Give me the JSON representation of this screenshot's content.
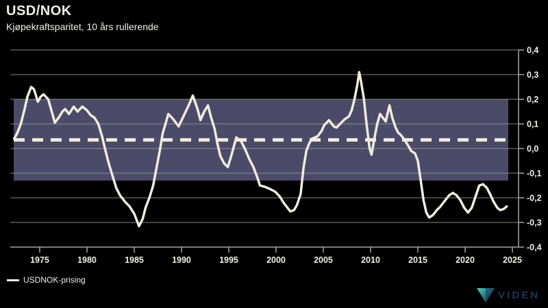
{
  "header": {
    "title": "USD/NOK",
    "subtitle": "Kjøpekraftsparitet, 10 års rullerende"
  },
  "legend": {
    "label": "USDNOK-prising"
  },
  "branding": {
    "name": "VIDEN",
    "logo": "viden-triangle-logo"
  },
  "colors": {
    "background": "#000000",
    "band": "#4b4b69",
    "line": "#f0ecdf",
    "grid": "#9a9a9a",
    "axis": "#a6a6a6",
    "text": "#f2efe6",
    "logo_text": "#1d3456",
    "logo_teal": "#52c9bd",
    "logo_mid": "#2a7f87",
    "logo_navy": "#12304f"
  },
  "chart_data": {
    "type": "line",
    "title": "USD/NOK",
    "subtitle": "Kjøpekraftsparitet, 10 års rullerende",
    "xlabel": "",
    "ylabel": "",
    "xlim": [
      1972.25,
      2025.65
    ],
    "ylim": [
      -0.4,
      0.4
    ],
    "grid": true,
    "legend_position": "bottom-left",
    "x_ticks": [
      1975,
      1980,
      1985,
      1990,
      1995,
      2000,
      2005,
      2010,
      2015,
      2020,
      2025
    ],
    "y_ticks": [
      {
        "value": 0.4,
        "label": "0,4"
      },
      {
        "value": 0.3,
        "label": "0,3"
      },
      {
        "value": 0.2,
        "label": "0,2"
      },
      {
        "value": 0.1,
        "label": "0,1"
      },
      {
        "value": 0.0,
        "label": "0,0"
      },
      {
        "value": -0.1,
        "label": "-0,1"
      },
      {
        "value": -0.2,
        "label": "-0,2"
      },
      {
        "value": -0.3,
        "label": "-0,3"
      },
      {
        "value": -0.4,
        "label": "-0,4"
      }
    ],
    "band": {
      "upper": 0.2,
      "lower": -0.13
    },
    "mean_line": {
      "value": 0.035,
      "style": "dashed"
    },
    "series": [
      {
        "name": "USDNOK-prising",
        "points": [
          [
            1972.3,
            0.04
          ],
          [
            1972.6,
            0.06
          ],
          [
            1973.0,
            0.1
          ],
          [
            1973.4,
            0.16
          ],
          [
            1973.7,
            0.21
          ],
          [
            1974.1,
            0.25
          ],
          [
            1974.4,
            0.24
          ],
          [
            1974.8,
            0.19
          ],
          [
            1975.1,
            0.21
          ],
          [
            1975.4,
            0.22
          ],
          [
            1975.9,
            0.2
          ],
          [
            1976.2,
            0.16
          ],
          [
            1976.6,
            0.105
          ],
          [
            1977.0,
            0.125
          ],
          [
            1977.4,
            0.15
          ],
          [
            1977.7,
            0.16
          ],
          [
            1978.1,
            0.14
          ],
          [
            1978.6,
            0.17
          ],
          [
            1979.0,
            0.15
          ],
          [
            1979.5,
            0.17
          ],
          [
            1980.0,
            0.155
          ],
          [
            1980.4,
            0.135
          ],
          [
            1980.8,
            0.125
          ],
          [
            1981.2,
            0.1
          ],
          [
            1981.6,
            0.05
          ],
          [
            1981.9,
            0.0
          ],
          [
            1982.3,
            -0.06
          ],
          [
            1982.7,
            -0.11
          ],
          [
            1983.1,
            -0.16
          ],
          [
            1983.5,
            -0.19
          ],
          [
            1984.0,
            -0.215
          ],
          [
            1984.5,
            -0.235
          ],
          [
            1985.0,
            -0.265
          ],
          [
            1985.5,
            -0.315
          ],
          [
            1985.9,
            -0.285
          ],
          [
            1986.2,
            -0.24
          ],
          [
            1986.6,
            -0.2
          ],
          [
            1987.0,
            -0.15
          ],
          [
            1987.3,
            -0.09
          ],
          [
            1987.7,
            -0.01
          ],
          [
            1988.0,
            0.06
          ],
          [
            1988.6,
            0.14
          ],
          [
            1989.1,
            0.12
          ],
          [
            1989.7,
            0.09
          ],
          [
            1990.2,
            0.13
          ],
          [
            1990.7,
            0.17
          ],
          [
            1991.2,
            0.215
          ],
          [
            1991.7,
            0.16
          ],
          [
            1992.0,
            0.115
          ],
          [
            1992.4,
            0.15
          ],
          [
            1992.8,
            0.175
          ],
          [
            1993.1,
            0.13
          ],
          [
            1993.5,
            0.08
          ],
          [
            1993.8,
            0.02
          ],
          [
            1994.1,
            -0.03
          ],
          [
            1994.5,
            -0.06
          ],
          [
            1994.9,
            -0.075
          ],
          [
            1995.3,
            -0.025
          ],
          [
            1995.8,
            0.045
          ],
          [
            1996.3,
            0.03
          ],
          [
            1996.7,
            0.0
          ],
          [
            1997.2,
            -0.045
          ],
          [
            1997.6,
            -0.075
          ],
          [
            1998.0,
            -0.115
          ],
          [
            1998.3,
            -0.15
          ],
          [
            1998.8,
            -0.155
          ],
          [
            1999.4,
            -0.165
          ],
          [
            1999.9,
            -0.175
          ],
          [
            2000.4,
            -0.195
          ],
          [
            2000.8,
            -0.22
          ],
          [
            2001.2,
            -0.24
          ],
          [
            2001.5,
            -0.255
          ],
          [
            2001.9,
            -0.25
          ],
          [
            2002.2,
            -0.23
          ],
          [
            2002.6,
            -0.185
          ],
          [
            2002.9,
            -0.08
          ],
          [
            2003.2,
            -0.01
          ],
          [
            2003.5,
            0.02
          ],
          [
            2003.8,
            0.04
          ],
          [
            2004.1,
            0.045
          ],
          [
            2004.4,
            0.05
          ],
          [
            2004.8,
            0.07
          ],
          [
            2005.1,
            0.095
          ],
          [
            2005.6,
            0.115
          ],
          [
            2006.1,
            0.09
          ],
          [
            2006.4,
            0.085
          ],
          [
            2006.9,
            0.105
          ],
          [
            2007.3,
            0.12
          ],
          [
            2007.7,
            0.13
          ],
          [
            2008.0,
            0.155
          ],
          [
            2008.3,
            0.2
          ],
          [
            2008.6,
            0.26
          ],
          [
            2008.8,
            0.31
          ],
          [
            2009.0,
            0.27
          ],
          [
            2009.3,
            0.2
          ],
          [
            2009.6,
            0.09
          ],
          [
            2009.9,
            0.0
          ],
          [
            2010.1,
            -0.025
          ],
          [
            2010.4,
            0.04
          ],
          [
            2010.7,
            0.1
          ],
          [
            2011.0,
            0.14
          ],
          [
            2011.3,
            0.125
          ],
          [
            2011.6,
            0.11
          ],
          [
            2012.0,
            0.175
          ],
          [
            2012.3,
            0.125
          ],
          [
            2012.6,
            0.09
          ],
          [
            2012.9,
            0.065
          ],
          [
            2013.2,
            0.055
          ],
          [
            2013.6,
            0.035
          ],
          [
            2014.0,
            0.01
          ],
          [
            2014.3,
            -0.01
          ],
          [
            2014.7,
            -0.02
          ],
          [
            2015.0,
            -0.05
          ],
          [
            2015.3,
            -0.13
          ],
          [
            2015.6,
            -0.21
          ],
          [
            2015.9,
            -0.26
          ],
          [
            2016.2,
            -0.28
          ],
          [
            2016.6,
            -0.27
          ],
          [
            2017.0,
            -0.25
          ],
          [
            2017.4,
            -0.235
          ],
          [
            2017.9,
            -0.21
          ],
          [
            2018.3,
            -0.19
          ],
          [
            2018.7,
            -0.18
          ],
          [
            2019.1,
            -0.19
          ],
          [
            2019.5,
            -0.21
          ],
          [
            2019.9,
            -0.24
          ],
          [
            2020.3,
            -0.26
          ],
          [
            2020.7,
            -0.24
          ],
          [
            2021.1,
            -0.195
          ],
          [
            2021.5,
            -0.15
          ],
          [
            2021.9,
            -0.145
          ],
          [
            2022.3,
            -0.16
          ],
          [
            2022.7,
            -0.19
          ],
          [
            2023.0,
            -0.215
          ],
          [
            2023.4,
            -0.24
          ],
          [
            2023.7,
            -0.25
          ],
          [
            2024.1,
            -0.245
          ],
          [
            2024.4,
            -0.235
          ]
        ]
      }
    ]
  }
}
